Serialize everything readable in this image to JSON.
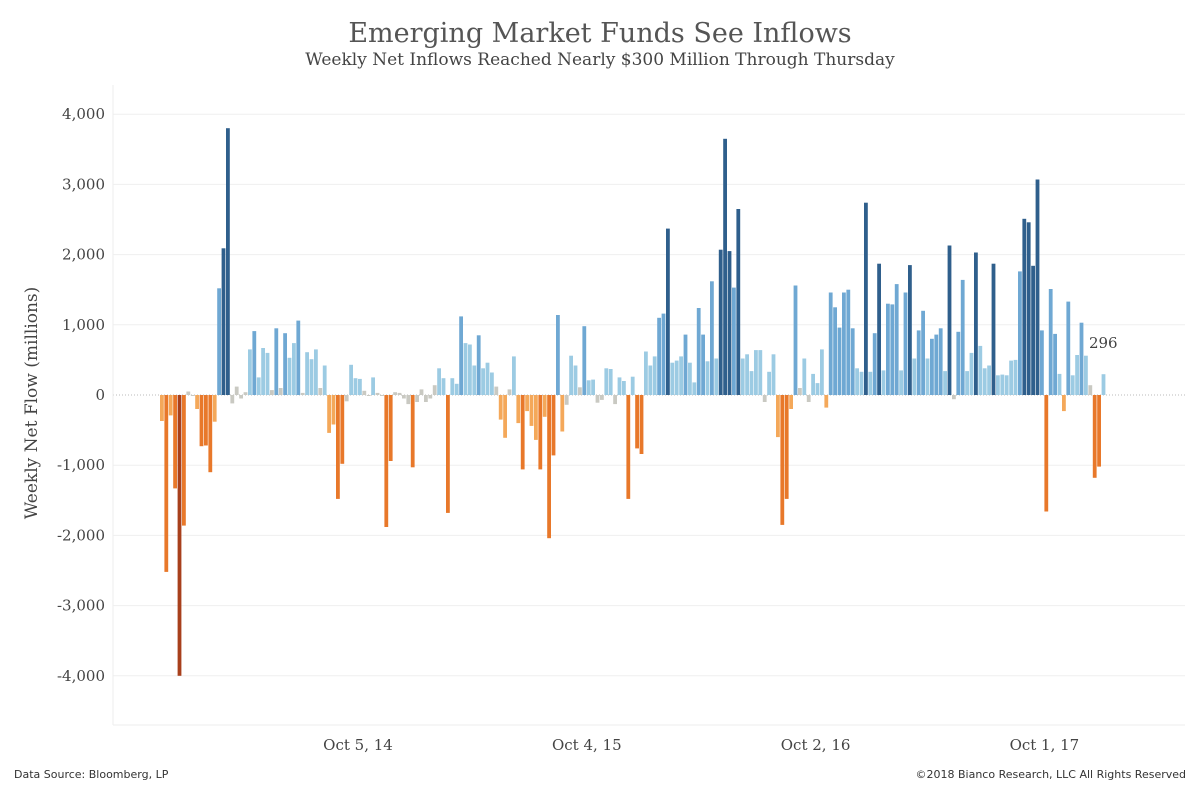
{
  "header": {
    "title": "Emerging Market Funds See Inflows",
    "subtitle": "Weekly Net Inflows Reached Nearly $300 Million Through Thursday"
  },
  "footer": {
    "source": "Data Source: Bloomberg, LP",
    "copyright": "©2018 Bianco Research, LLC  All Rights Reserved"
  },
  "chart_data": {
    "type": "bar",
    "title": "Emerging Market Funds See Inflows",
    "subtitle": "Weekly Net Inflows Reached Nearly $300 Million Through Thursday",
    "ylabel": "Weekly Net Flow (millions)",
    "xlabel": "",
    "ylim": [
      -4400,
      4400
    ],
    "yticks": [
      4000,
      3000,
      2000,
      1000,
      0,
      -1000,
      -2000,
      -3000,
      -4000
    ],
    "ytick_labels": [
      "4,000",
      "3,000",
      "2,000",
      "1,000",
      "0",
      "-1,000",
      "-2,000",
      "-3,000",
      "-4,000"
    ],
    "xtick_labels": [
      {
        "label": "Oct 5, 14",
        "index": 45
      },
      {
        "label": "Oct 4, 15",
        "index": 97
      },
      {
        "label": "Oct 2, 16",
        "index": 149
      },
      {
        "label": "Oct 1, 17",
        "index": 201
      }
    ],
    "grid": true,
    "legend": "none",
    "last_value_label": "296",
    "color_scale": {
      "strong_negative": "#a8401c",
      "negative": "#e8782a",
      "mild_negative": "#f4a85a",
      "neutral": "#c9c9c2",
      "mild_positive": "#9ccbe3",
      "positive": "#6fa8d3",
      "strong_positive": "#2f5f8c"
    },
    "values": [
      -370,
      -2520,
      -290,
      -1330,
      -4000,
      -1860,
      50,
      -10,
      -200,
      -730,
      -720,
      -1100,
      -380,
      1520,
      2090,
      3800,
      -120,
      120,
      -50,
      40,
      650,
      910,
      250,
      670,
      600,
      70,
      950,
      100,
      880,
      530,
      740,
      1060,
      30,
      610,
      510,
      650,
      100,
      420,
      -540,
      -420,
      -1480,
      -980,
      -90,
      430,
      240,
      230,
      60,
      0,
      250,
      30,
      0,
      -1880,
      -940,
      40,
      30,
      -50,
      -130,
      -1030,
      -100,
      80,
      -100,
      -50,
      140,
      380,
      240,
      -1680,
      240,
      160,
      1120,
      740,
      720,
      420,
      850,
      380,
      460,
      320,
      120,
      -350,
      -610,
      80,
      550,
      -400,
      -1060,
      -230,
      -440,
      -640,
      -1060,
      -310,
      -2040,
      -860,
      1140,
      -520,
      -140,
      560,
      420,
      110,
      980,
      210,
      220,
      -110,
      -70,
      380,
      370,
      -130,
      250,
      200,
      -1480,
      260,
      -760,
      -840,
      620,
      420,
      550,
      1100,
      1160,
      2370,
      460,
      490,
      550,
      860,
      460,
      180,
      1240,
      860,
      480,
      1620,
      520,
      2070,
      3650,
      2050,
      1530,
      2650,
      520,
      580,
      340,
      640,
      640,
      -100,
      330,
      580,
      -600,
      -1850,
      -1480,
      -200,
      1560,
      100,
      520,
      -100,
      300,
      170,
      650,
      -180,
      1460,
      1250,
      960,
      1460,
      1500,
      950,
      380,
      330,
      2740,
      330,
      880,
      1870,
      350,
      1300,
      1290,
      1580,
      350,
      1460,
      1850,
      520,
      920,
      1200,
      520,
      800,
      860,
      950,
      340,
      2130,
      -60,
      900,
      1640,
      340,
      600,
      2030,
      700,
      380,
      420,
      1870,
      280,
      290,
      280,
      490,
      500,
      1760,
      2510,
      2460,
      1840,
      3070,
      920,
      -1660,
      1510,
      870,
      300,
      -230,
      1330,
      280,
      570,
      1030,
      560,
      140,
      -1180,
      -1020,
      296
    ]
  }
}
